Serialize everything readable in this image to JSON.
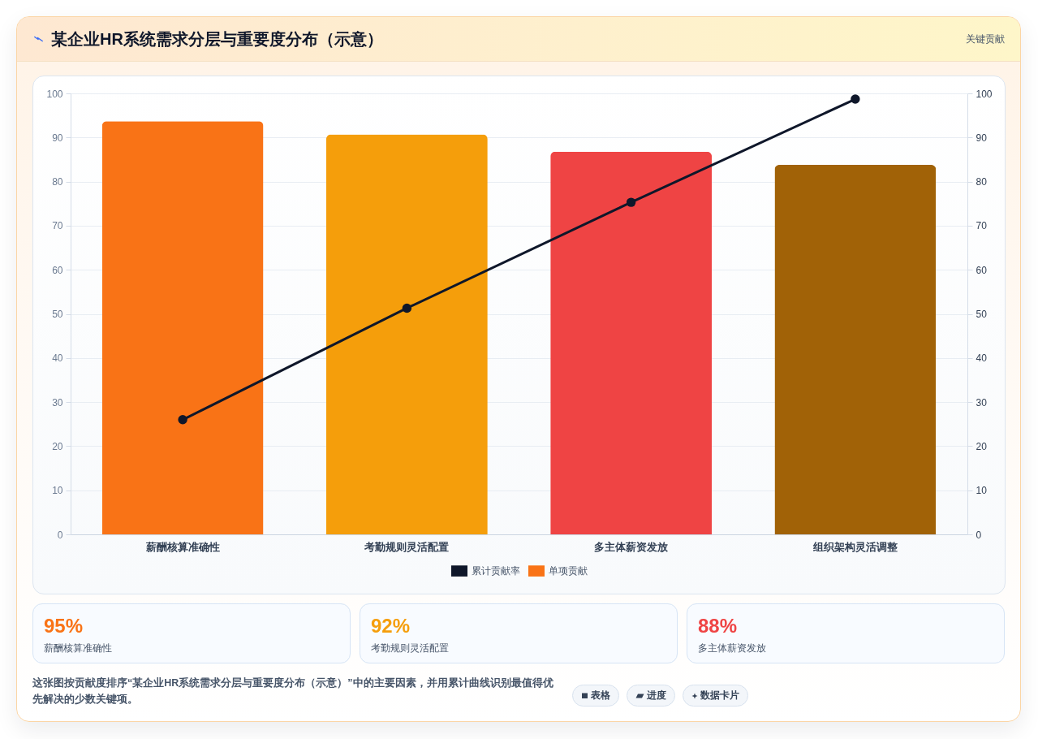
{
  "chart_data": [
    {
      "type": "bar",
      "title": "某企业HR系统需求分层与重要度分布（示意）",
      "categories": [
        "薪酬核算准确性",
        "考勤规则灵活配置",
        "多主体薪资发放",
        "组织架构灵活调整"
      ],
      "series": [
        {
          "name": "累计贡献率",
          "type": "line",
          "axis": "y2",
          "color": "#0f172a",
          "values": [
            26,
            51.3,
            75.3,
            98.7
          ]
        },
        {
          "name": "单项贡献",
          "type": "bar",
          "colors": [
            "#f97316",
            "#f59e0b",
            "#ef4444",
            "#a16207"
          ],
          "values": [
            93.7,
            90.7,
            86.8,
            83.8
          ]
        }
      ],
      "ylim": [
        0,
        100
      ],
      "yticks": [
        0,
        10,
        20,
        30,
        40,
        50,
        60,
        70,
        80,
        90,
        100
      ],
      "y2lim": [
        0,
        100
      ],
      "y2ticks": [
        0,
        10,
        20,
        30,
        40,
        50,
        60,
        70,
        80,
        90,
        100
      ],
      "grid": "y",
      "legend": "bottom",
      "marker": "circle",
      "annotations": [
        "关键贡献",
        "这张图按贡献度排序“某企业HR系统需求分层与重要度分布（示意）”中的主要因素，并用累计曲线识别最值得优先解决的少数关键项。",
        "表格",
        "进度",
        "数据卡片"
      ]
    },
    {
      "type": "other",
      "categories": [
        "薪酬核算准确性",
        "考勤规则灵活配置",
        "多主体薪资发放"
      ],
      "value_labels": [
        "95%",
        "92%",
        "88%"
      ]
    }
  ]
}
